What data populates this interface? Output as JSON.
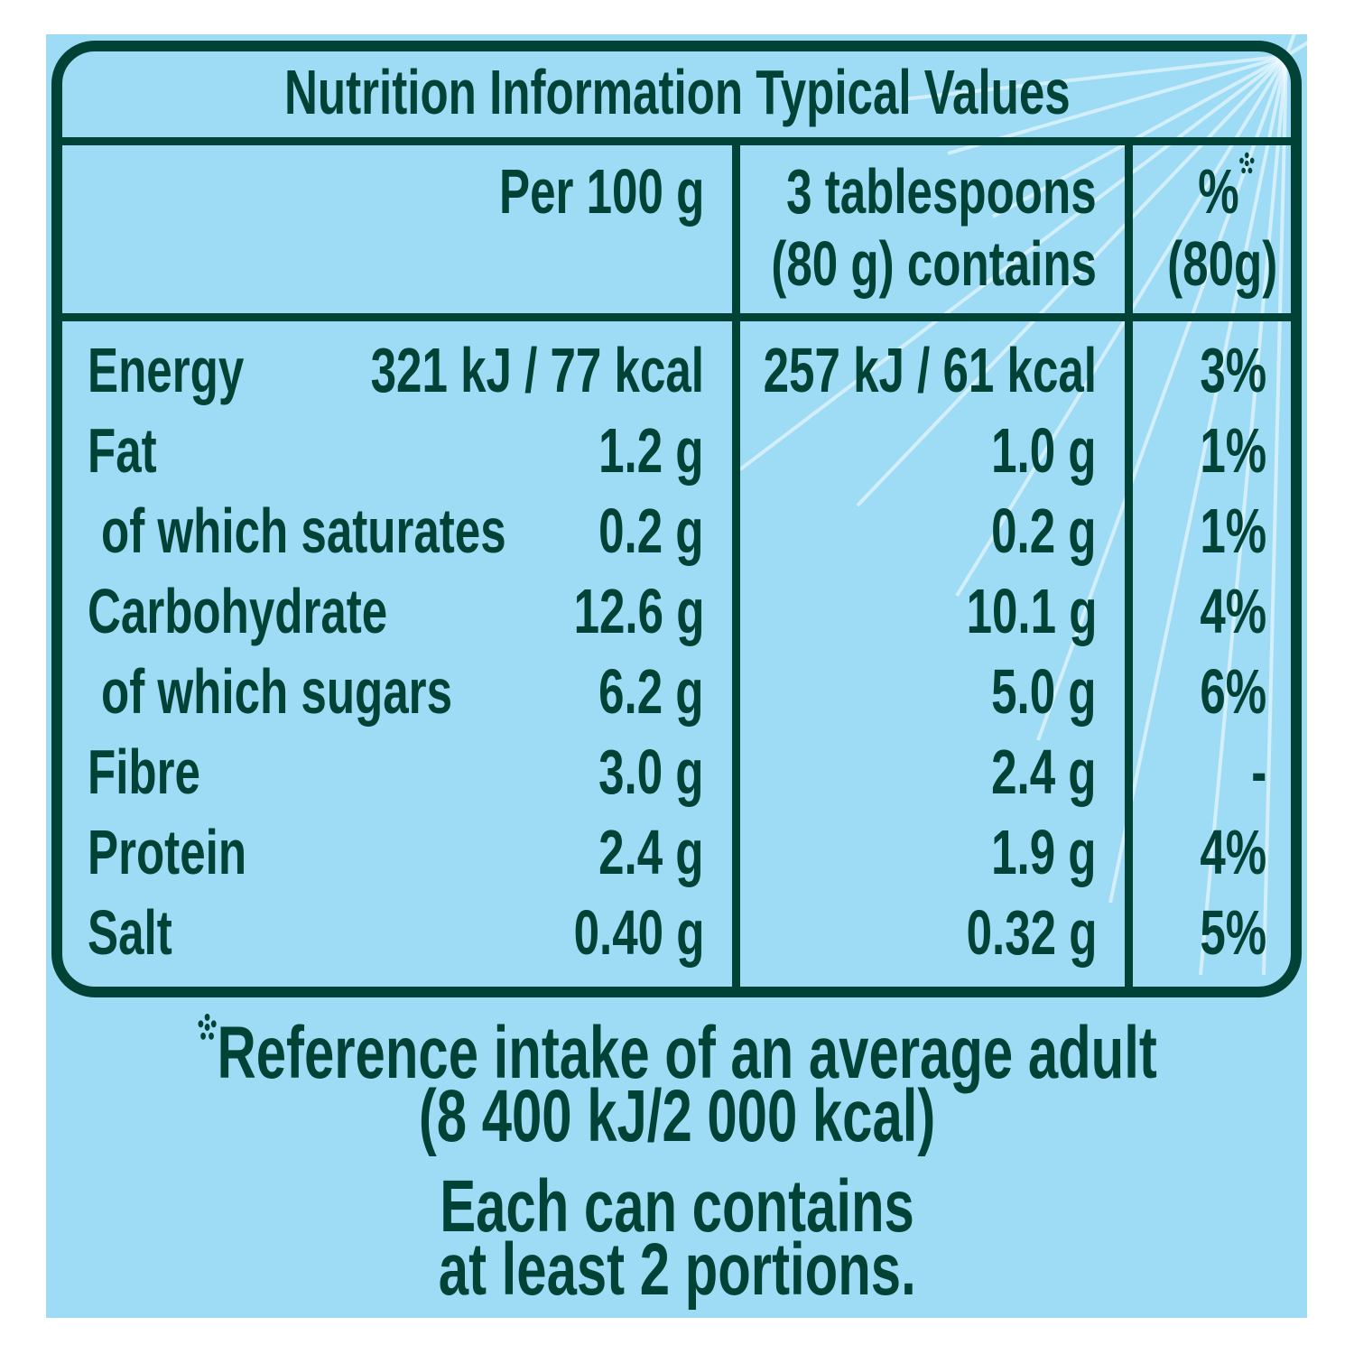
{
  "title": "Nutrition Information Typical Values",
  "headers": {
    "per100": "Per 100 g",
    "portion_line1": "3 tablespoons",
    "portion_line2": "(80 g) contains",
    "ri_line1": "%",
    "ri_line2": "(80g)",
    "ri_marker_icon": "asterisk-dots-icon"
  },
  "rows": [
    {
      "label": "Energy",
      "per100": "321 kJ / 77 kcal",
      "portion": "257 kJ / 61 kcal",
      "ri": "3%",
      "sub": false
    },
    {
      "label": "Fat",
      "per100": "1.2 g",
      "portion": "1.0 g",
      "ri": "1%",
      "sub": false
    },
    {
      "label": "of which saturates",
      "per100": "0.2 g",
      "portion": "0.2 g",
      "ri": "1%",
      "sub": true
    },
    {
      "label": "Carbohydrate",
      "per100": "12.6 g",
      "portion": "10.1 g",
      "ri": "4%",
      "sub": false
    },
    {
      "label": "of which sugars",
      "per100": "6.2 g",
      "portion": "5.0 g",
      "ri": "6%",
      "sub": true
    },
    {
      "label": "Fibre",
      "per100": "3.0 g",
      "portion": "2.4 g",
      "ri": "-",
      "sub": false
    },
    {
      "label": "Protein",
      "per100": "2.4 g",
      "portion": "1.9 g",
      "ri": "4%",
      "sub": false
    },
    {
      "label": "Salt",
      "per100": "0.40 g",
      "portion": "0.32 g",
      "ri": "5%",
      "sub": false
    }
  ],
  "footnote": {
    "line1": "Reference intake of an average adult",
    "line2": "(8 400 kJ/2 000 kcal)"
  },
  "portions_note": {
    "line1": "Each can contains",
    "line2": "at least 2 portions."
  },
  "colors": {
    "background": "#9edcf6",
    "ink": "#004236"
  }
}
